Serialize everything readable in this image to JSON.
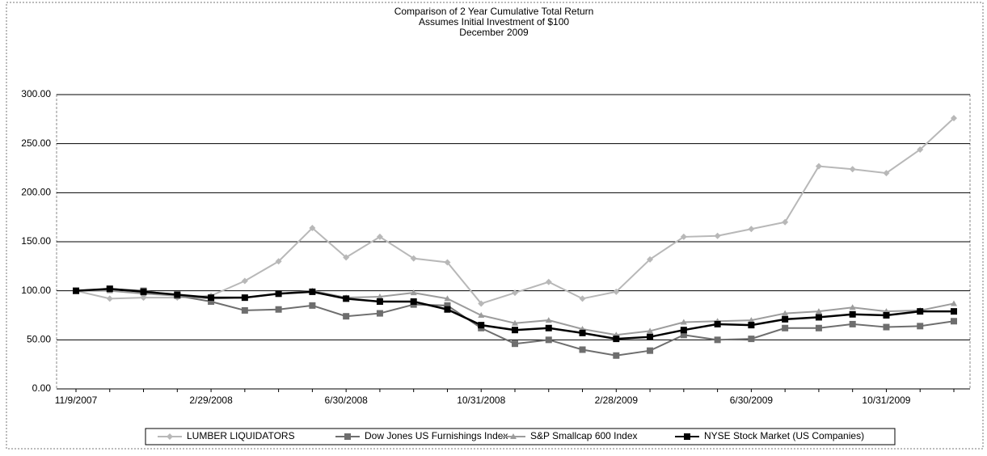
{
  "chart_data": {
    "type": "line",
    "title": [
      "Comparison of 2 Year Cumulative Total Return",
      "Assumes Initial Investment of $100",
      "December 2009"
    ],
    "categories": [
      "11/9/2007",
      null,
      null,
      null,
      "2/29/2008",
      null,
      null,
      null,
      "6/30/2008",
      null,
      null,
      null,
      "10/31/2008",
      null,
      null,
      null,
      "2/28/2009",
      null,
      null,
      null,
      "6/30/2009",
      null,
      null,
      null,
      "10/31/2009",
      null,
      null
    ],
    "series": [
      {
        "name": "LUMBER LIQUIDATORS",
        "color": "#b8b8b8",
        "marker": "diamond",
        "values": [
          100,
          92,
          93,
          93,
          95,
          110,
          130,
          164,
          134,
          155,
          133,
          129,
          87,
          98,
          109,
          92,
          99,
          132,
          155,
          156,
          163,
          170,
          227,
          224,
          220,
          244,
          276
        ]
      },
      {
        "name": "Dow Jones US Furnishings Index",
        "color": "#6e6e6e",
        "marker": "square",
        "values": [
          100,
          102,
          100,
          95,
          89,
          80,
          81,
          85,
          74,
          77,
          86,
          85,
          62,
          46,
          50,
          40,
          34,
          39,
          55,
          50,
          51,
          62,
          62,
          66,
          63,
          64,
          69
        ]
      },
      {
        "name": "S&P Smallcap 600 Index",
        "color": "#9c9c9c",
        "marker": "triangle",
        "values": [
          100,
          100,
          97,
          95,
          92,
          93,
          97,
          100,
          93,
          94,
          98,
          92,
          75,
          67,
          70,
          61,
          55,
          59,
          68,
          69,
          70,
          77,
          79,
          83,
          79,
          80,
          87
        ]
      },
      {
        "name": "NYSE Stock Market (US Companies)",
        "color": "#000000",
        "marker": "square",
        "values": [
          100,
          102,
          99,
          96,
          93,
          93,
          97,
          99,
          92,
          89,
          89,
          81,
          65,
          60,
          62,
          57,
          51,
          53,
          60,
          66,
          65,
          71,
          73,
          76,
          75,
          79,
          79
        ]
      }
    ],
    "ylim": [
      0,
      300
    ],
    "yticks": [
      {
        "value": 0,
        "label": "0.00"
      },
      {
        "value": 50,
        "label": "50.00"
      },
      {
        "value": 100,
        "label": "100.00"
      },
      {
        "value": 150,
        "label": "150.00"
      },
      {
        "value": 200,
        "label": "200.00"
      },
      {
        "value": 250,
        "label": "250.00"
      },
      {
        "value": 300,
        "label": "300.00"
      }
    ],
    "grid": true,
    "legend": "bottom"
  }
}
